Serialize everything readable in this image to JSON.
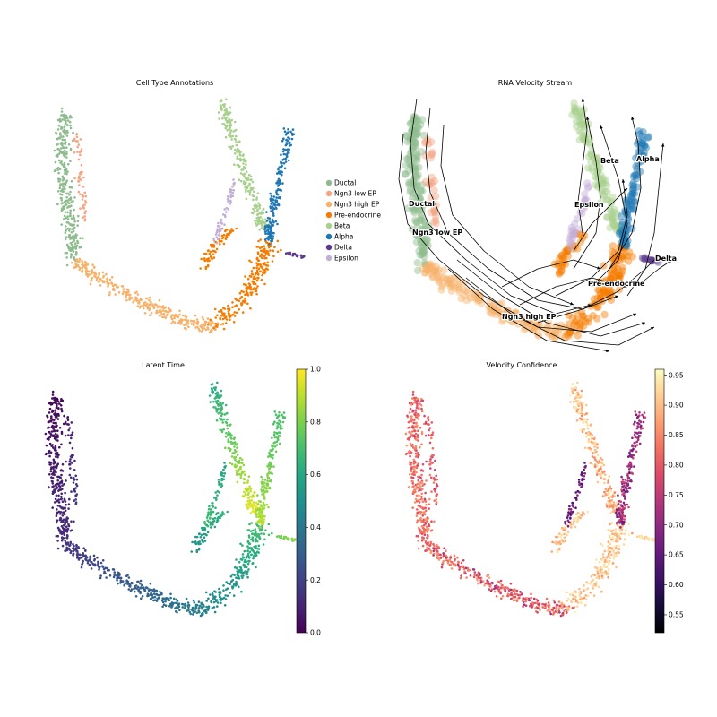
{
  "chart_data": [
    {
      "type": "scatter",
      "title": "Cell Type Annotations",
      "xlabel": "",
      "ylabel": "",
      "grid": false,
      "legend": {
        "placement": "right",
        "entries": [
          "Ductal",
          "Ngn3 low EP",
          "Ngn3 high EP",
          "Pre-endocrine",
          "Beta",
          "Alpha",
          "Delta",
          "Epsilon"
        ]
      },
      "series": [
        {
          "name": "Ductal",
          "color": "#8fbc8f"
        },
        {
          "name": "Ngn3 low EP",
          "color": "#f4a582"
        },
        {
          "name": "Ngn3 high EP",
          "color": "#f6b26b"
        },
        {
          "name": "Pre-endocrine",
          "color": "#f57c00"
        },
        {
          "name": "Beta",
          "color": "#a8d08d"
        },
        {
          "name": "Alpha",
          "color": "#1f77b4"
        },
        {
          "name": "Delta",
          "color": "#5b3a8c"
        },
        {
          "name": "Epsilon",
          "color": "#c3aed6"
        }
      ]
    },
    {
      "type": "scatter",
      "title": "RNA Velocity Stream",
      "xlabel": "",
      "ylabel": "",
      "grid": false,
      "annotations": [
        "Ductal",
        "Ngn3 low EP",
        "Ngn3 high EP",
        "Pre-endocrine",
        "Beta",
        "Alpha",
        "Epsilon",
        "Delta"
      ]
    },
    {
      "type": "scatter",
      "title": "Latent Time",
      "xlabel": "",
      "ylabel": "",
      "grid": false,
      "colorbar": {
        "min": 0.0,
        "max": 1.0,
        "ticks": [
          "0.0",
          "0.2",
          "0.4",
          "0.6",
          "0.8",
          "1.0"
        ],
        "colormap": "viridis"
      }
    },
    {
      "type": "scatter",
      "title": "Velocity Confidence",
      "xlabel": "",
      "ylabel": "",
      "grid": false,
      "colorbar": {
        "min": 0.52,
        "max": 0.96,
        "ticks": [
          "0.55",
          "0.60",
          "0.65",
          "0.70",
          "0.75",
          "0.80",
          "0.85",
          "0.90",
          "0.95"
        ],
        "colormap": "magma"
      }
    }
  ]
}
